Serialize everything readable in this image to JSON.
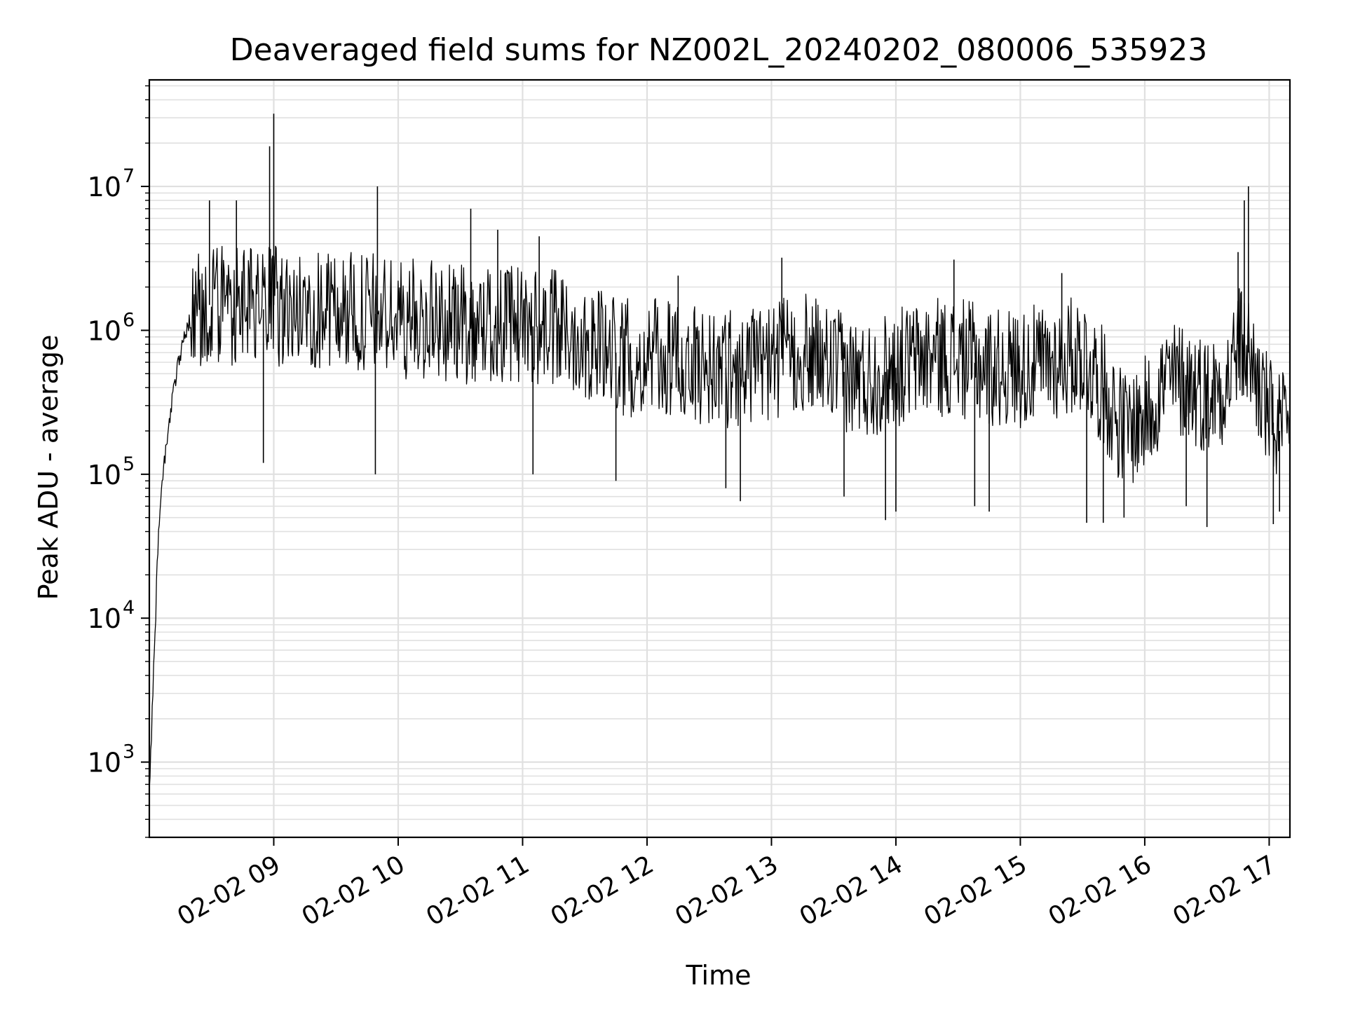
{
  "chart_data": {
    "type": "line",
    "title": "Deaveraged field sums for NZ002L_20240202_080006_535923",
    "xlabel": "Time",
    "ylabel": "Peak ADU - average",
    "yscale": "log",
    "ylim": [
      300,
      55000000
    ],
    "xlim": [
      "2024-02-02 08:00",
      "2024-02-02 17:10"
    ],
    "grid": true,
    "line_color": "#000000",
    "grid_color": "#e0e0e0",
    "x_ticks": [
      {
        "t": "2024-02-02 09:00",
        "label": "02-02 09"
      },
      {
        "t": "2024-02-02 10:00",
        "label": "02-02 10"
      },
      {
        "t": "2024-02-02 11:00",
        "label": "02-02 11"
      },
      {
        "t": "2024-02-02 12:00",
        "label": "02-02 12"
      },
      {
        "t": "2024-02-02 13:00",
        "label": "02-02 13"
      },
      {
        "t": "2024-02-02 14:00",
        "label": "02-02 14"
      },
      {
        "t": "2024-02-02 15:00",
        "label": "02-02 15"
      },
      {
        "t": "2024-02-02 16:00",
        "label": "02-02 16"
      },
      {
        "t": "2024-02-02 17:00",
        "label": "02-02 17"
      }
    ],
    "y_ticks": [
      {
        "v": 1000,
        "base": "10",
        "exp": "3"
      },
      {
        "v": 10000,
        "base": "10",
        "exp": "4"
      },
      {
        "v": 100000,
        "base": "10",
        "exp": "5"
      },
      {
        "v": 1000000,
        "base": "10",
        "exp": "6"
      },
      {
        "v": 10000000,
        "base": "10",
        "exp": "7"
      }
    ],
    "series": [
      {
        "x": [
          "2024-02-02 08:00",
          "2024-02-02 08:01",
          "2024-02-02 08:02",
          "2024-02-02 08:03",
          "2024-02-02 08:04",
          "2024-02-02 08:05",
          "2024-02-02 08:06",
          "2024-02-02 08:08",
          "2024-02-02 08:10",
          "2024-02-02 08:12",
          "2024-02-02 08:14",
          "2024-02-02 08:16",
          "2024-02-02 08:18",
          "2024-02-02 08:20",
          "2024-02-02 08:22",
          "2024-02-02 08:25",
          "2024-02-02 08:28",
          "2024-02-02 08:30",
          "2024-02-02 08:32",
          "2024-02-02 08:35",
          "2024-02-02 08:38",
          "2024-02-02 08:40",
          "2024-02-02 08:45",
          "2024-02-02 08:50",
          "2024-02-02 08:55",
          "2024-02-02 09:00",
          "2024-02-02 09:05",
          "2024-02-02 09:10",
          "2024-02-02 09:20",
          "2024-02-02 09:30",
          "2024-02-02 09:40",
          "2024-02-02 09:50",
          "2024-02-02 10:00",
          "2024-02-02 10:15",
          "2024-02-02 10:30",
          "2024-02-02 10:40",
          "2024-02-02 10:50",
          "2024-02-02 11:00",
          "2024-02-02 11:15",
          "2024-02-02 11:30",
          "2024-02-02 11:40",
          "2024-02-02 11:50",
          "2024-02-02 12:00",
          "2024-02-02 12:15",
          "2024-02-02 12:30",
          "2024-02-02 12:45",
          "2024-02-02 13:00",
          "2024-02-02 13:15",
          "2024-02-02 13:30",
          "2024-02-02 13:45",
          "2024-02-02 14:00",
          "2024-02-02 14:15",
          "2024-02-02 14:30",
          "2024-02-02 14:45",
          "2024-02-02 15:00",
          "2024-02-02 15:15",
          "2024-02-02 15:30",
          "2024-02-02 15:40",
          "2024-02-02 15:50",
          "2024-02-02 16:00",
          "2024-02-02 16:10",
          "2024-02-02 16:20",
          "2024-02-02 16:30",
          "2024-02-02 16:40",
          "2024-02-02 16:45",
          "2024-02-02 16:50",
          "2024-02-02 17:00",
          "2024-02-02 17:05",
          "2024-02-02 17:10"
        ],
        "y": [
          600,
          1500,
          4000,
          10000,
          30000,
          50000,
          80000,
          150000,
          250000,
          400000,
          600000,
          800000,
          1000000,
          1200000,
          1300000,
          1400000,
          1500000,
          1500000,
          1400000,
          1600000,
          1500000,
          1400000,
          1500000,
          1400000,
          1400000,
          1500000,
          1400000,
          1300000,
          1400000,
          1400000,
          1300000,
          1300000,
          1200000,
          1200000,
          1100000,
          1100000,
          1100000,
          1100000,
          1000000,
          900000,
          750000,
          650000,
          650000,
          600000,
          550000,
          550000,
          600000,
          700000,
          550000,
          450000,
          550000,
          650000,
          650000,
          550000,
          550000,
          600000,
          700000,
          400000,
          200000,
          250000,
          450000,
          450000,
          350000,
          450000,
          800000,
          700000,
          250000,
          200000,
          180000
        ]
      }
    ],
    "spikes": [
      {
        "t": "2024-02-02 08:29",
        "v": 8000000
      },
      {
        "t": "2024-02-02 08:42",
        "v": 8000000
      },
      {
        "t": "2024-02-02 08:58",
        "v": 19000000
      },
      {
        "t": "2024-02-02 09:00",
        "v": 32000000
      },
      {
        "t": "2024-02-02 09:50",
        "v": 10000000
      },
      {
        "t": "2024-02-02 10:35",
        "v": 7000000
      },
      {
        "t": "2024-02-02 10:48",
        "v": 5000000
      },
      {
        "t": "2024-02-02 11:08",
        "v": 4500000
      },
      {
        "t": "2024-02-02 12:15",
        "v": 2400000
      },
      {
        "t": "2024-02-02 13:05",
        "v": 3200000
      },
      {
        "t": "2024-02-02 14:28",
        "v": 3100000
      },
      {
        "t": "2024-02-02 15:20",
        "v": 2500000
      },
      {
        "t": "2024-02-02 16:45",
        "v": 3500000
      },
      {
        "t": "2024-02-02 16:48",
        "v": 8000000
      },
      {
        "t": "2024-02-02 16:50",
        "v": 10000000
      }
    ],
    "dips": [
      {
        "t": "2024-02-02 08:55",
        "v": 120000
      },
      {
        "t": "2024-02-02 09:49",
        "v": 100000
      },
      {
        "t": "2024-02-02 11:05",
        "v": 100000
      },
      {
        "t": "2024-02-02 11:45",
        "v": 90000
      },
      {
        "t": "2024-02-02 12:38",
        "v": 80000
      },
      {
        "t": "2024-02-02 12:45",
        "v": 65000
      },
      {
        "t": "2024-02-02 13:35",
        "v": 70000
      },
      {
        "t": "2024-02-02 13:55",
        "v": 48000
      },
      {
        "t": "2024-02-02 14:00",
        "v": 55000
      },
      {
        "t": "2024-02-02 14:38",
        "v": 60000
      },
      {
        "t": "2024-02-02 14:45",
        "v": 55000
      },
      {
        "t": "2024-02-02 15:32",
        "v": 46000
      },
      {
        "t": "2024-02-02 15:40",
        "v": 46000
      },
      {
        "t": "2024-02-02 15:50",
        "v": 50000
      },
      {
        "t": "2024-02-02 16:20",
        "v": 60000
      },
      {
        "t": "2024-02-02 16:30",
        "v": 43000
      },
      {
        "t": "2024-02-02 17:02",
        "v": 45000
      },
      {
        "t": "2024-02-02 17:05",
        "v": 55000
      }
    ]
  }
}
